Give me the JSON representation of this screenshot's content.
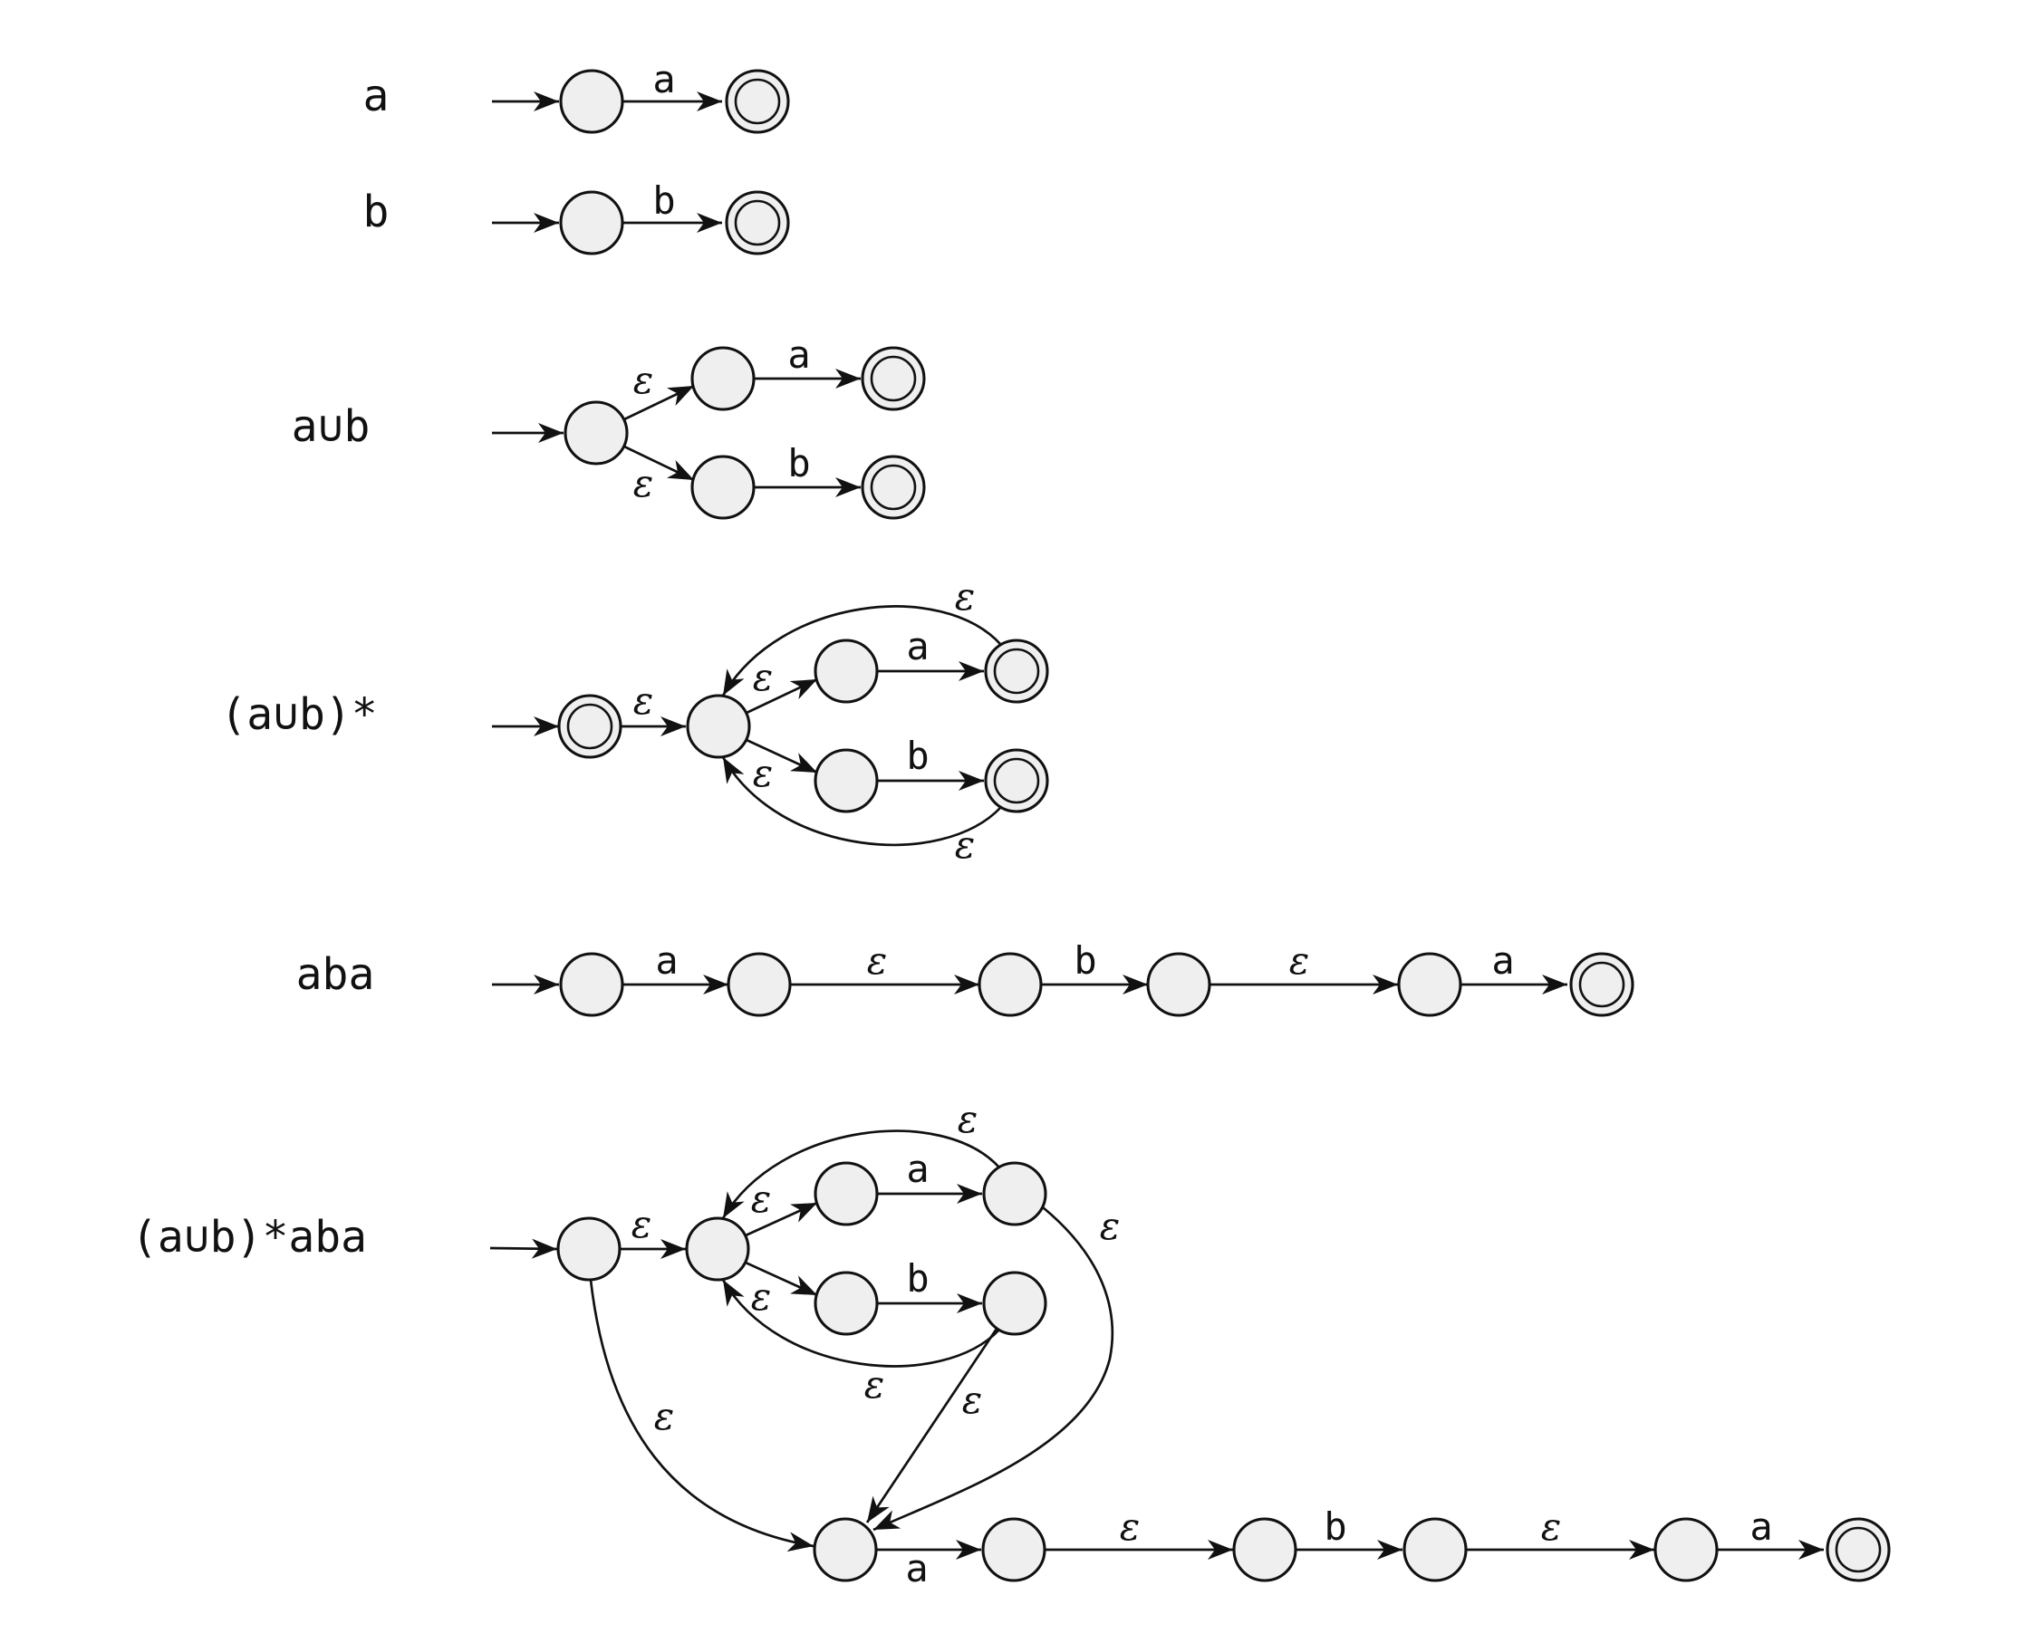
{
  "rows": [
    {
      "label": "a"
    },
    {
      "label": "b"
    },
    {
      "label": "a∪b"
    },
    {
      "label": "(a∪b)*"
    },
    {
      "label": "aba"
    },
    {
      "label": "(a∪b)*aba"
    }
  ],
  "symbols": {
    "a": "a",
    "b": "b",
    "epsilon": "ε"
  },
  "colors": {
    "state_fill": "#efefef",
    "stroke": "#111111"
  }
}
